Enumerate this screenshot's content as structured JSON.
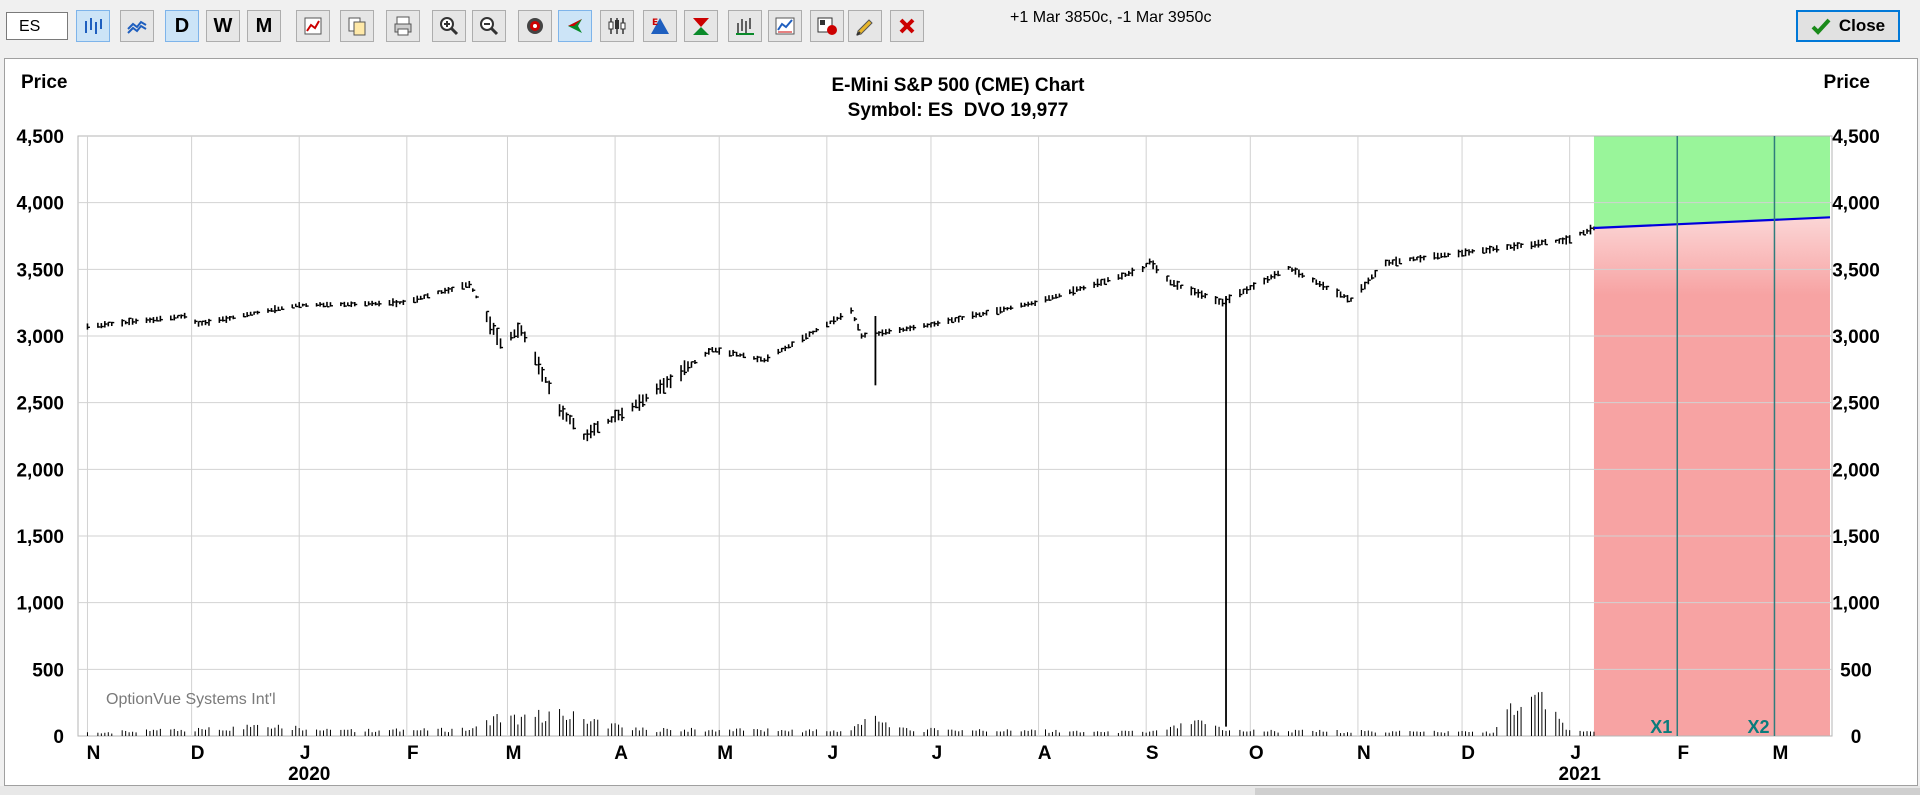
{
  "toolbar": {
    "symbol_value": "ES",
    "period_day": "D",
    "period_week": "W",
    "period_month": "M",
    "status_text": "+1 Mar 3850c, -1 Mar 3950c",
    "close_label": "Close"
  },
  "icons": [
    "bar-chart-icon",
    "line-chart-icon",
    "day-button",
    "week-button",
    "month-button",
    "study-icon",
    "copy-icon",
    "print-icon",
    "zoom-in-icon",
    "zoom-out-icon",
    "target-icon",
    "back-arrow-icon",
    "candlestick-icon",
    "dividend-icon",
    "expiration-icon",
    "volume-icon",
    "indicator-icon",
    "chart-settings-icon",
    "draw-pencil-icon",
    "delete-icon",
    "checkmark-icon"
  ],
  "colors": {
    "price_bars": "#000000",
    "projection_upper": "#99f59a",
    "projection_lower": "#f7a3a3",
    "projection_line": "#0000dd",
    "expiry_line": "#2f7c7c",
    "expiry_label": "#0a7c7c"
  },
  "chart_data": {
    "type": "bar",
    "title": "E-Mini S&P 500 (CME) Chart",
    "subtitle": "Symbol: ES  DVO 19,977",
    "ylabel_left": "Price",
    "ylabel_right": "Price",
    "ylim": [
      0,
      4500
    ],
    "yticks": [
      "0",
      "500",
      "1,000",
      "1,500",
      "2,000",
      "2,500",
      "3,000",
      "3,500",
      "4,000",
      "4,500"
    ],
    "grid": true,
    "watermark": "OptionVue Systems Int'l",
    "month_labels": [
      "N",
      "D",
      "J",
      "F",
      "M",
      "A",
      "M",
      "J",
      "J",
      "A",
      "S",
      "O",
      "N",
      "D",
      "J",
      "F",
      "M"
    ],
    "year_labels": [
      "2020",
      "2021"
    ],
    "x_start": "2019-10-31",
    "price_anchors": [
      {
        "date": "2019-11-01",
        "price": 3070
      },
      {
        "date": "2019-11-29",
        "price": 3150
      },
      {
        "date": "2019-12-03",
        "price": 3090
      },
      {
        "date": "2019-12-31",
        "price": 3230
      },
      {
        "date": "2020-01-31",
        "price": 3250
      },
      {
        "date": "2020-02-19",
        "price": 3390
      },
      {
        "date": "2020-02-28",
        "price": 2950
      },
      {
        "date": "2020-03-05",
        "price": 3050
      },
      {
        "date": "2020-03-16",
        "price": 2450
      },
      {
        "date": "2020-03-23",
        "price": 2250
      },
      {
        "date": "2020-04-08",
        "price": 2500
      },
      {
        "date": "2020-04-29",
        "price": 2900
      },
      {
        "date": "2020-05-14",
        "price": 2820
      },
      {
        "date": "2020-06-08",
        "price": 3190
      },
      {
        "date": "2020-06-11",
        "price": 3000
      },
      {
        "date": "2020-06-30",
        "price": 3080
      },
      {
        "date": "2020-07-31",
        "price": 3250
      },
      {
        "date": "2020-08-31",
        "price": 3500
      },
      {
        "date": "2020-09-02",
        "price": 3560
      },
      {
        "date": "2020-09-08",
        "price": 3400
      },
      {
        "date": "2020-09-23",
        "price": 3250
      },
      {
        "date": "2020-10-12",
        "price": 3510
      },
      {
        "date": "2020-10-30",
        "price": 3270
      },
      {
        "date": "2020-11-09",
        "price": 3550
      },
      {
        "date": "2020-11-30",
        "price": 3620
      },
      {
        "date": "2020-12-31",
        "price": 3720
      },
      {
        "date": "2021-01-08",
        "price": 3810
      }
    ],
    "spikes": [
      {
        "date": "2020-06-15",
        "low": 2630,
        "high": 3150
      },
      {
        "date": "2020-09-24",
        "low": 70,
        "high": 3300
      }
    ],
    "volume_anchors": [
      {
        "date": "2019-11-01",
        "value": 25
      },
      {
        "date": "2019-12-13",
        "value": 60
      },
      {
        "date": "2019-12-20",
        "value": 100
      },
      {
        "date": "2020-01-10",
        "value": 40
      },
      {
        "date": "2020-02-20",
        "value": 50
      },
      {
        "date": "2020-02-27",
        "value": 140
      },
      {
        "date": "2020-03-05",
        "value": 130
      },
      {
        "date": "2020-03-12",
        "value": 170
      },
      {
        "date": "2020-03-20",
        "value": 150
      },
      {
        "date": "2020-04-06",
        "value": 50
      },
      {
        "date": "2020-06-08",
        "value": 40
      },
      {
        "date": "2020-06-12",
        "value": 150
      },
      {
        "date": "2020-06-22",
        "value": 50
      },
      {
        "date": "2020-09-02",
        "value": 30
      },
      {
        "date": "2020-09-18",
        "value": 110
      },
      {
        "date": "2020-09-25",
        "value": 40
      },
      {
        "date": "2020-12-10",
        "value": 30
      },
      {
        "date": "2020-12-17",
        "value": 280
      },
      {
        "date": "2020-12-24",
        "value": 300
      },
      {
        "date": "2020-12-31",
        "value": 40
      },
      {
        "date": "2021-01-08",
        "value": 30
      }
    ],
    "projection": {
      "start_date": "2021-01-08",
      "end_date": "2021-03-17",
      "line": [
        {
          "date": "2021-01-08",
          "price": 3810
        },
        {
          "date": "2021-03-17",
          "price": 3890
        }
      ]
    },
    "expirations": [
      {
        "label": "X1",
        "date": "2021-02-01"
      },
      {
        "label": "X2",
        "date": "2021-03-01"
      }
    ]
  }
}
